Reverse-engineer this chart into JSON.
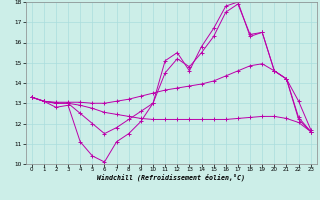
{
  "xlabel": "Windchill (Refroidissement éolien,°C)",
  "background_color": "#cceee8",
  "grid_color": "#aadddd",
  "line_color": "#bb00aa",
  "xlim": [
    -0.5,
    23.5
  ],
  "ylim": [
    10,
    18
  ],
  "yticks": [
    10,
    11,
    12,
    13,
    14,
    15,
    16,
    17,
    18
  ],
  "xticks": [
    0,
    1,
    2,
    3,
    4,
    5,
    6,
    7,
    8,
    9,
    10,
    11,
    12,
    13,
    14,
    15,
    16,
    17,
    18,
    19,
    20,
    21,
    22,
    23
  ],
  "series": [
    {
      "x": [
        0,
        1,
        2,
        3,
        4,
        5,
        6,
        7,
        8,
        9,
        10,
        11,
        12,
        13,
        14,
        15,
        16,
        17,
        18,
        19,
        20,
        21,
        22,
        23
      ],
      "y": [
        13.3,
        13.1,
        12.8,
        12.9,
        11.1,
        10.4,
        10.1,
        11.1,
        11.5,
        12.1,
        13.0,
        15.1,
        15.5,
        14.6,
        15.8,
        16.7,
        17.8,
        18.0,
        16.3,
        16.5,
        14.6,
        14.2,
        12.2,
        11.6
      ]
    },
    {
      "x": [
        0,
        1,
        2,
        3,
        4,
        5,
        6,
        7,
        8,
        9,
        10,
        11,
        12,
        13,
        14,
        15,
        16,
        17,
        18,
        19,
        20,
        21,
        22,
        23
      ],
      "y": [
        13.3,
        13.1,
        13.05,
        13.05,
        13.05,
        13.0,
        13.0,
        13.1,
        13.2,
        13.35,
        13.5,
        13.65,
        13.75,
        13.85,
        13.95,
        14.1,
        14.35,
        14.6,
        14.85,
        14.95,
        14.6,
        14.2,
        13.1,
        11.7
      ]
    },
    {
      "x": [
        0,
        1,
        2,
        3,
        4,
        5,
        6,
        7,
        8,
        9,
        10,
        11,
        12,
        13,
        14,
        15,
        16,
        17,
        18,
        19,
        20,
        21,
        22,
        23
      ],
      "y": [
        13.3,
        13.1,
        13.0,
        13.0,
        12.9,
        12.75,
        12.55,
        12.45,
        12.35,
        12.25,
        12.2,
        12.2,
        12.2,
        12.2,
        12.2,
        12.2,
        12.2,
        12.25,
        12.3,
        12.35,
        12.35,
        12.25,
        12.05,
        11.6
      ]
    },
    {
      "x": [
        0,
        1,
        2,
        3,
        4,
        5,
        6,
        7,
        8,
        9,
        10,
        11,
        12,
        13,
        14,
        15,
        16,
        17,
        18,
        19,
        20,
        21,
        22,
        23
      ],
      "y": [
        13.3,
        13.1,
        13.0,
        13.0,
        12.5,
        12.0,
        11.5,
        11.8,
        12.2,
        12.6,
        13.0,
        14.5,
        15.2,
        14.8,
        15.5,
        16.3,
        17.5,
        17.9,
        16.4,
        16.5,
        14.6,
        14.2,
        12.3,
        11.6
      ]
    }
  ]
}
